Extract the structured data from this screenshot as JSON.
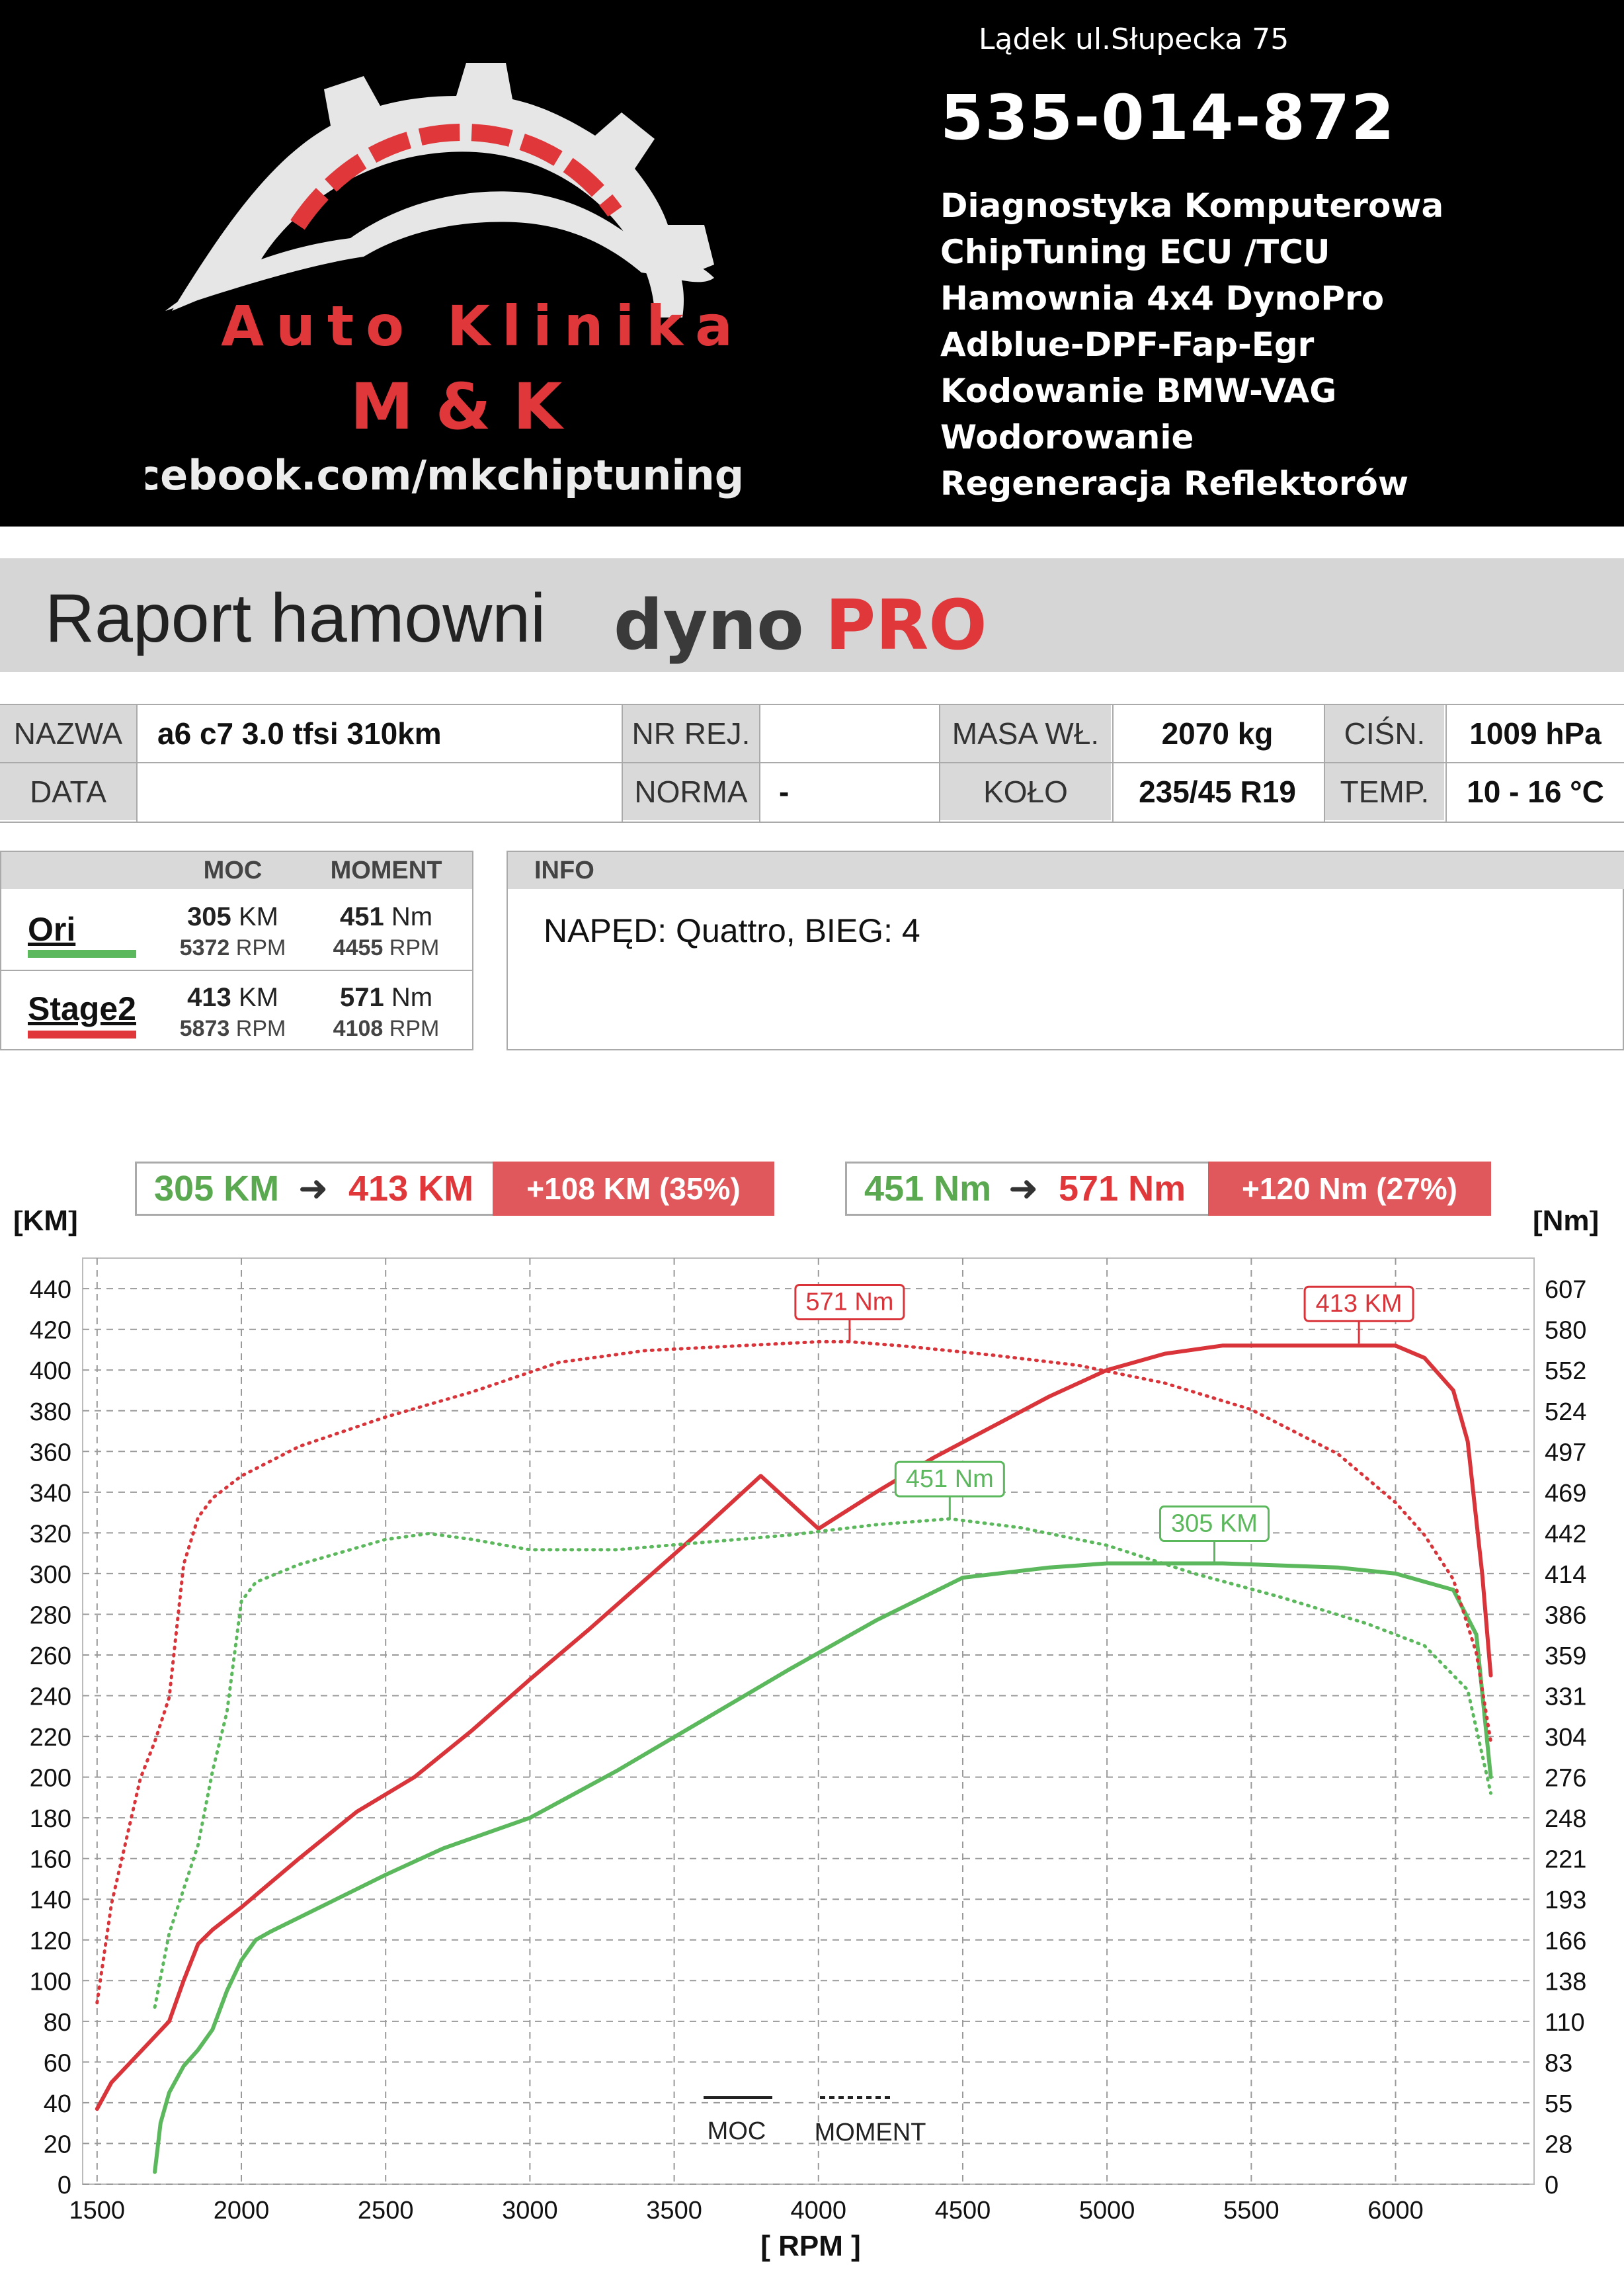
{
  "header": {
    "logo": {
      "line1": "Auto Klinika",
      "line2": "M & K",
      "facebook": "Facebook.com/mkchiptuning"
    },
    "address": "Lądek ul.Słupecka 75",
    "phone": "535-014-872",
    "services": [
      "Diagnostyka Komputerowa",
      "ChipTuning ECU /TCU",
      "Hamownia 4x4 DynoPro",
      "Adblue-DPF-Fap-Egr",
      "Kodowanie BMW-VAG",
      "Wodorowanie",
      "Regeneracja Reflektorów"
    ]
  },
  "report": {
    "title": "Raport hamowni",
    "brand_dyno": "dyno",
    "brand_pro": "PRO"
  },
  "vehicle": {
    "labels": {
      "name": "NAZWA",
      "reg": "NR REJ.",
      "mass": "MASA WŁ.",
      "pressure": "CIŚN.",
      "date": "DATA",
      "norm": "NORMA",
      "wheel": "KOŁO",
      "temp": "TEMP."
    },
    "values": {
      "name": "a6 c7 3.0 tfsi 310km",
      "reg": "",
      "mass": "2070 kg",
      "pressure": "1009 hPa",
      "date": "",
      "norm": "-",
      "wheel": "235/45 R19",
      "temp": "10 - 16 °C"
    }
  },
  "legend": {
    "col_power": "MOC",
    "col_torque": "MOMENT",
    "runs": [
      {
        "name": "Ori",
        "color": "#5cb85c",
        "power": "305",
        "power_unit": "KM",
        "power_rpm": "5372",
        "torque": "451",
        "torque_unit": "Nm",
        "torque_rpm": "4455",
        "rpm_unit": "RPM"
      },
      {
        "name": "Stage2",
        "color": "#e0373b",
        "power": "413",
        "power_unit": "KM",
        "power_rpm": "5873",
        "torque": "571",
        "torque_unit": "Nm",
        "torque_rpm": "4108",
        "rpm_unit": "RPM"
      }
    ]
  },
  "info": {
    "title": "INFO",
    "text": "NAPĘD: Quattro,  BIEG: 4"
  },
  "summary": {
    "power": {
      "from": "305 KM",
      "to": "413 KM",
      "diff": "+108 KM  (35%)"
    },
    "torque": {
      "from": "451 Nm",
      "to": "571 Nm",
      "diff": "+120 Nm  (27%)"
    }
  },
  "chart_data": {
    "type": "line",
    "xlabel": "[ RPM ]",
    "ylabel_left": "[KM]",
    "ylabel_right": "[Nm]",
    "xlim": [
      1450,
      6480
    ],
    "ylim": [
      0,
      455
    ],
    "xticks": [
      1500,
      2000,
      2500,
      3000,
      3500,
      4000,
      4500,
      5000,
      5500,
      6000
    ],
    "yticks": [
      0,
      20,
      40,
      60,
      80,
      100,
      120,
      140,
      160,
      180,
      200,
      220,
      240,
      260,
      280,
      300,
      320,
      340,
      360,
      380,
      400,
      420,
      440
    ],
    "yticks_right": [
      "0",
      "28",
      "55",
      "83",
      "110",
      "138",
      "166",
      "193",
      "221",
      "248",
      "276",
      "304",
      "331",
      "359",
      "386",
      "414",
      "442",
      "469",
      "497",
      "524",
      "552",
      "580",
      "607"
    ],
    "grid": true,
    "legend": {
      "solid": "MOC",
      "dotted": "MOMENT"
    },
    "series": [
      {
        "name": "Stage2",
        "kind": "power",
        "color": "#d9343a",
        "style": "solid",
        "x": [
          1500,
          1550,
          1650,
          1750,
          1800,
          1850,
          1900,
          2000,
          2200,
          2400,
          2600,
          2800,
          3000,
          3200,
          3400,
          3600,
          3800,
          4000,
          4200,
          4400,
          4600,
          4800,
          5000,
          5200,
          5400,
          5600,
          5800,
          5900,
          6000,
          6100,
          6200,
          6250,
          6300,
          6330
        ],
        "y": [
          37,
          50,
          65,
          80,
          100,
          118,
          125,
          136,
          160,
          183,
          200,
          223,
          248,
          272,
          297,
          322,
          348,
          322,
          340,
          357,
          372,
          387,
          400,
          408,
          412,
          412,
          412,
          412,
          412,
          406,
          390,
          365,
          300,
          250
        ]
      },
      {
        "name": "Ori",
        "kind": "power",
        "color": "#5cb85c",
        "style": "solid",
        "x": [
          1700,
          1720,
          1750,
          1800,
          1850,
          1900,
          1950,
          2000,
          2050,
          2100,
          2300,
          2500,
          2700,
          3000,
          3300,
          3600,
          3900,
          4200,
          4500,
          4800,
          5000,
          5200,
          5400,
          5600,
          5800,
          6000,
          6200,
          6280,
          6330
        ],
        "y": [
          6,
          30,
          45,
          58,
          66,
          76,
          95,
          110,
          120,
          124,
          138,
          152,
          165,
          180,
          203,
          228,
          253,
          277,
          298,
          303,
          305,
          305,
          305,
          304,
          303,
          300,
          292,
          270,
          200
        ]
      },
      {
        "name": "Stage2",
        "kind": "torque",
        "color": "#d9343a",
        "style": "dotted",
        "x": [
          1500,
          1550,
          1650,
          1700,
          1750,
          1800,
          1850,
          1900,
          2000,
          2200,
          2500,
          2800,
          3100,
          3400,
          3700,
          4000,
          4108,
          4300,
          4600,
          4900,
          5200,
          5500,
          5800,
          6000,
          6100,
          6200,
          6280,
          6330
        ],
        "y": [
          123,
          190,
          275,
          300,
          330,
          420,
          452,
          465,
          480,
          500,
          520,
          537,
          557,
          565,
          568,
          571,
          571,
          568,
          562,
          555,
          543,
          525,
          495,
          462,
          440,
          410,
          360,
          300
        ]
      },
      {
        "name": "Ori",
        "kind": "torque",
        "color": "#5cb85c",
        "style": "dotted",
        "x": [
          1700,
          1720,
          1750,
          1800,
          1850,
          1900,
          1950,
          2000,
          2050,
          2200,
          2500,
          2650,
          2800,
          3000,
          3300,
          3600,
          3900,
          4200,
          4455,
          4700,
          5000,
          5300,
          5600,
          5900,
          6100,
          6250,
          6330
        ],
        "y": [
          120,
          140,
          170,
          200,
          230,
          280,
          320,
          395,
          408,
          420,
          437,
          441,
          437,
          430,
          430,
          435,
          440,
          447,
          451,
          445,
          433,
          414,
          398,
          380,
          365,
          335,
          265
        ]
      }
    ],
    "annotations": [
      {
        "label": "571 Nm",
        "series": "Stage2 torque",
        "x": 4108,
        "y": 571,
        "color": "#d9343a"
      },
      {
        "label": "413 KM",
        "series": "Stage2 power",
        "x": 5873,
        "y": 413,
        "color": "#d9343a"
      },
      {
        "label": "451 Nm",
        "series": "Ori torque",
        "x": 4455,
        "y": 451,
        "color": "#5cb85c"
      },
      {
        "label": "305 KM",
        "series": "Ori power",
        "x": 5372,
        "y": 305,
        "color": "#5cb85c"
      }
    ]
  }
}
